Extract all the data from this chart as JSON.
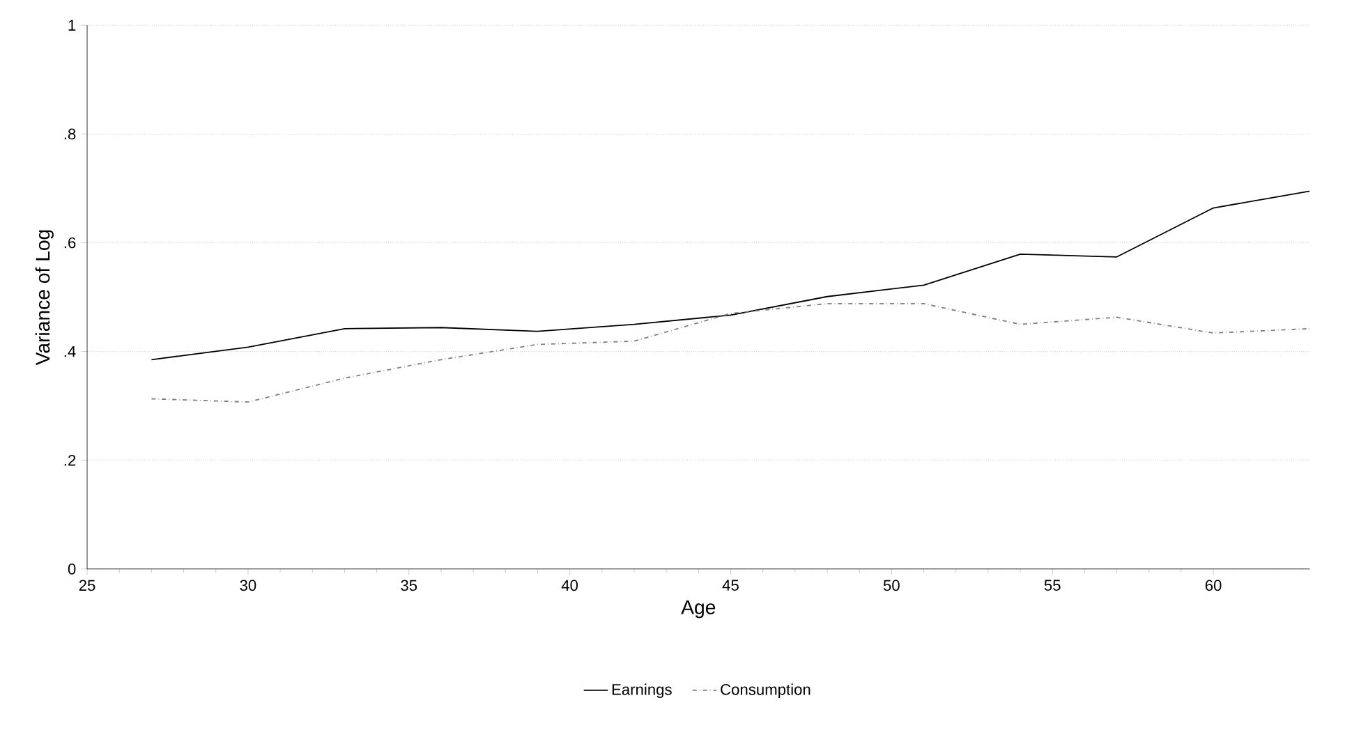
{
  "chart_data": {
    "type": "line",
    "xlabel": "Age",
    "ylabel": "Variance of Log",
    "x": [
      27,
      30,
      33,
      36,
      39,
      42,
      45,
      48,
      51,
      54,
      57,
      60,
      63
    ],
    "series": [
      {
        "name": "Earnings",
        "color": "#000000",
        "line_style": "solid",
        "values": [
          0.385,
          0.408,
          0.442,
          0.444,
          0.437,
          0.45,
          0.467,
          0.501,
          0.522,
          0.579,
          0.574,
          0.664,
          0.695
        ]
      },
      {
        "name": "Consumption",
        "color": "#808080",
        "line_style": "dashed",
        "values": [
          0.313,
          0.307,
          0.351,
          0.385,
          0.413,
          0.419,
          0.47,
          0.488,
          0.488,
          0.45,
          0.463,
          0.434,
          0.442
        ]
      }
    ],
    "xlim": [
      25,
      63
    ],
    "xticks": [
      25,
      30,
      35,
      40,
      45,
      50,
      55,
      60
    ],
    "ylim": [
      0,
      1
    ],
    "yticks": [
      {
        "value": 0,
        "label": "0"
      },
      {
        "value": 0.2,
        "label": ".2"
      },
      {
        "value": 0.4,
        "label": ".4"
      },
      {
        "value": 0.6,
        "label": ".6"
      },
      {
        "value": 0.8,
        "label": ".8"
      },
      {
        "value": 1,
        "label": "1"
      }
    ],
    "grid": "y",
    "legend": "bottom",
    "marker": "none"
  }
}
